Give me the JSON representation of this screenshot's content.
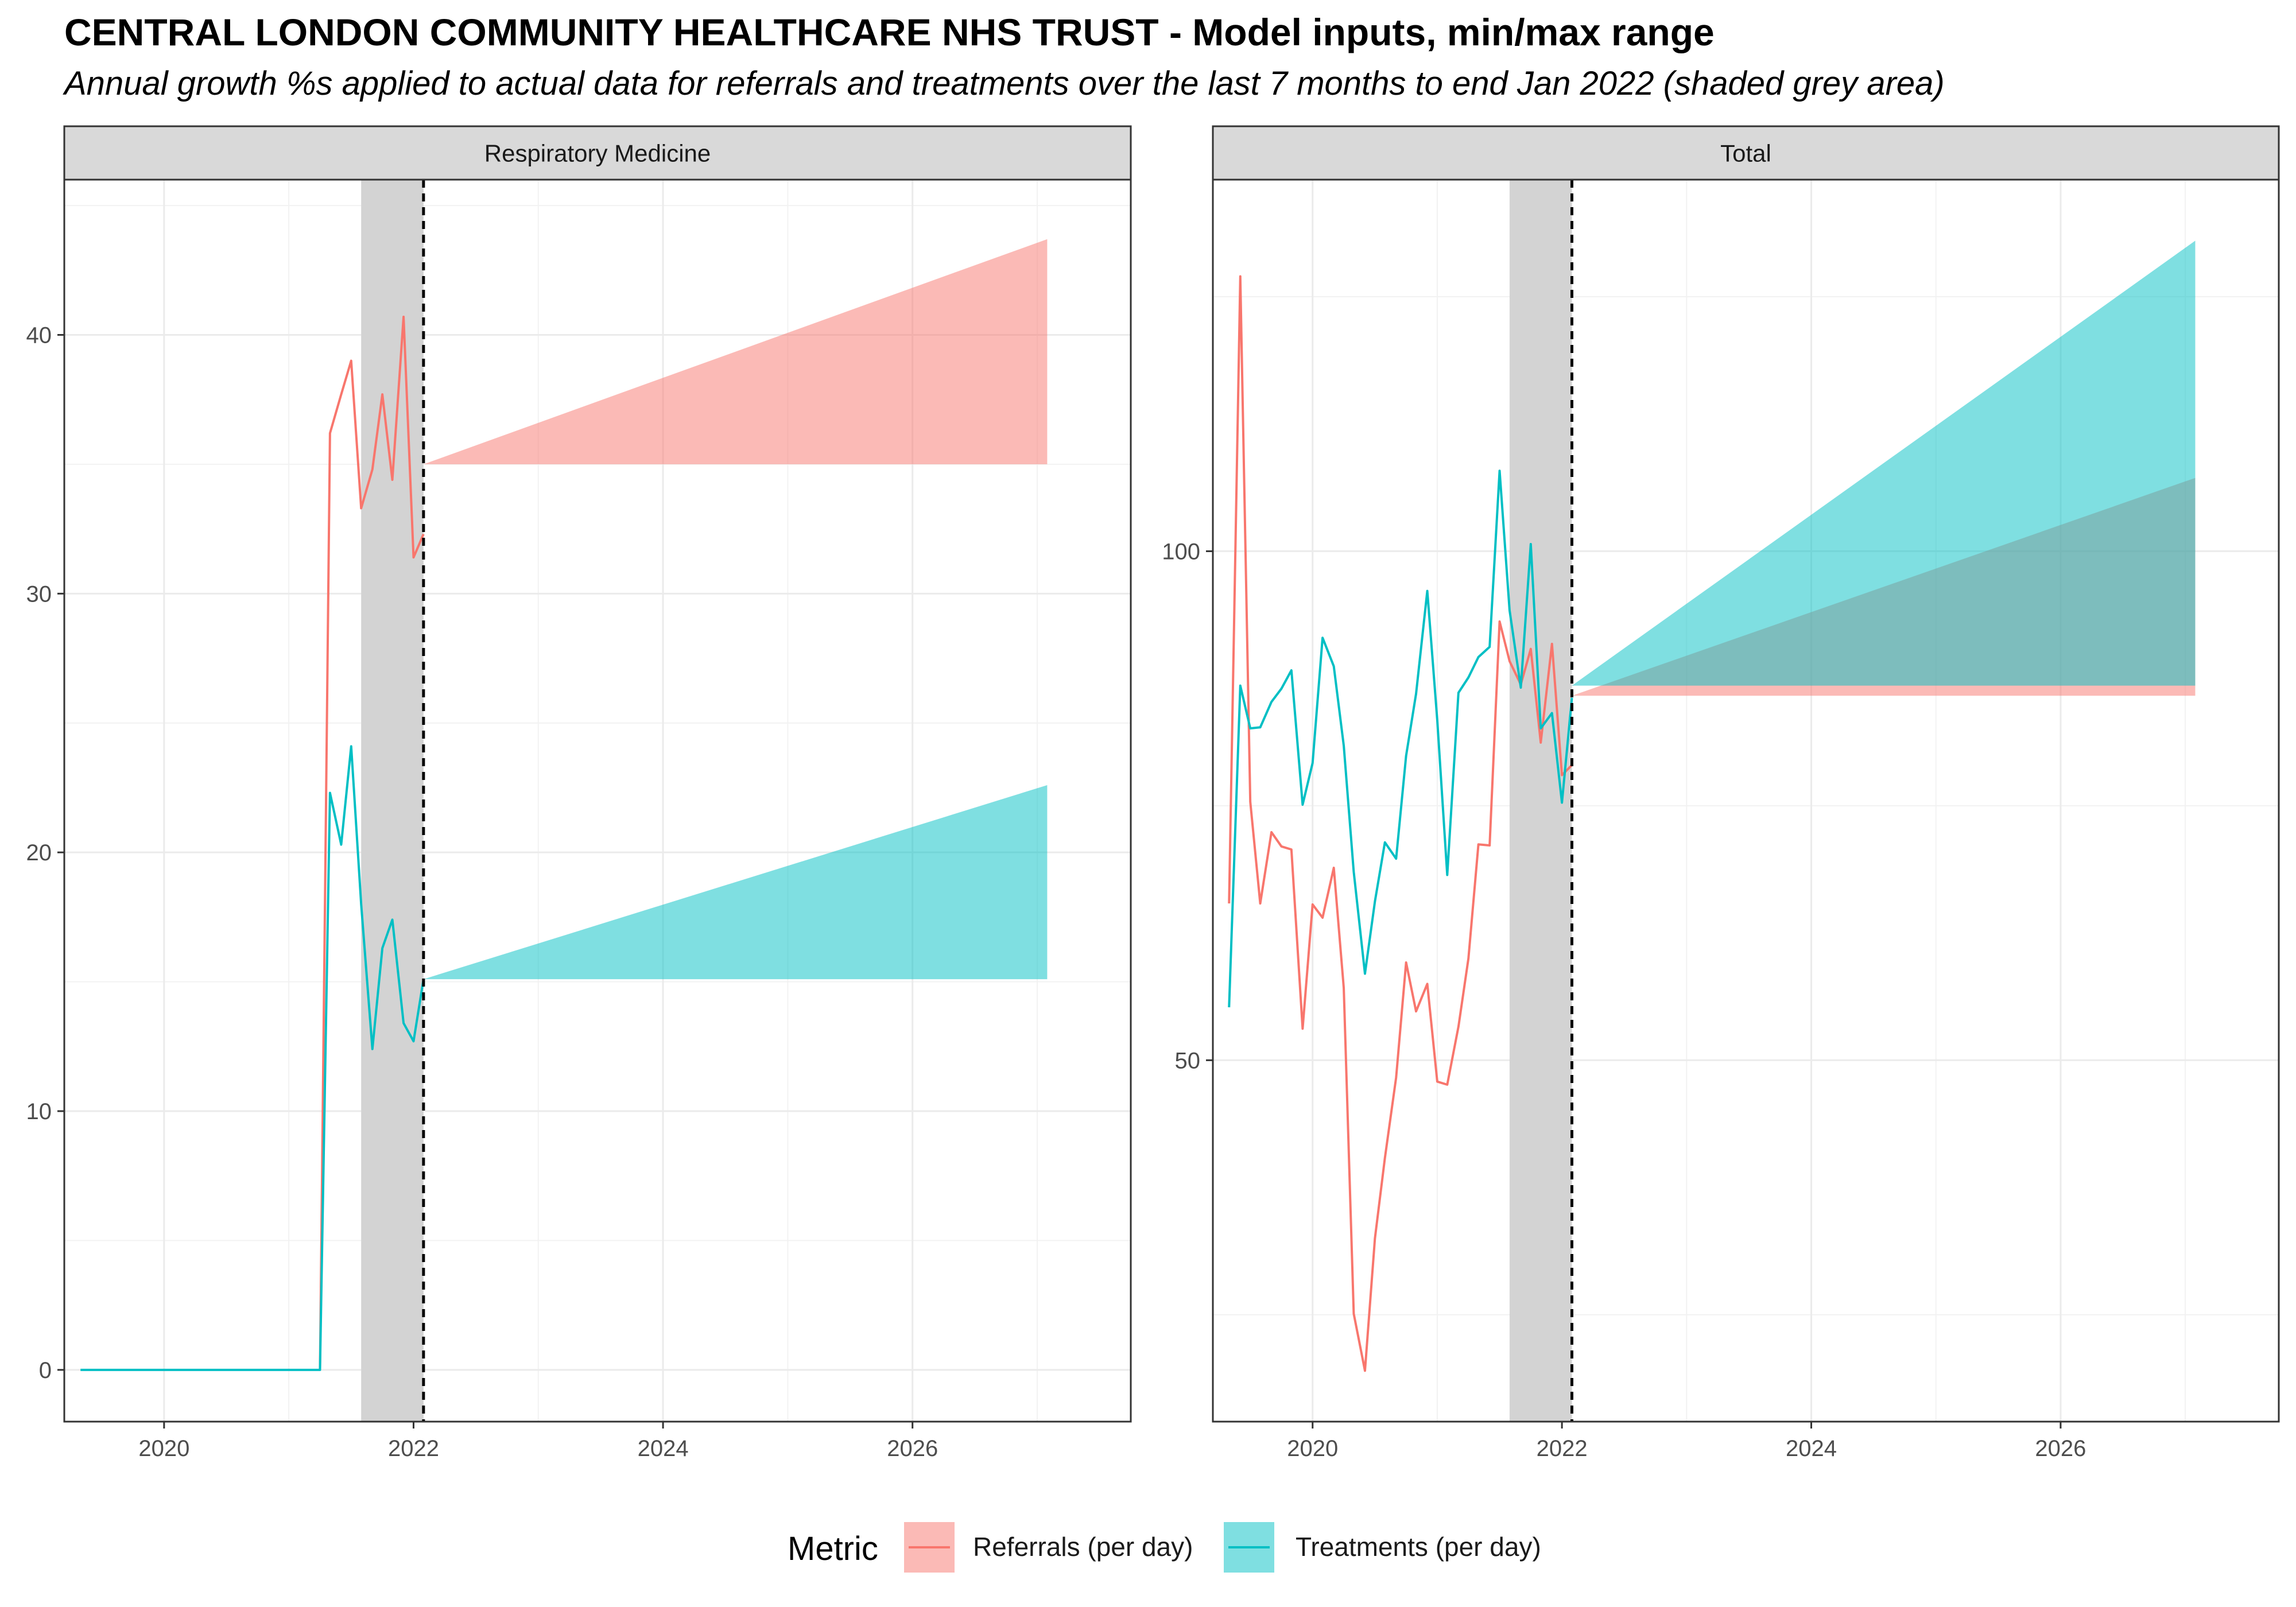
{
  "title": "CENTRAL LONDON COMMUNITY HEALTHCARE NHS TRUST - Model inputs, min/max range",
  "subtitle": "Annual growth %s applied to actual data for referrals and treatments over the last 7 months to end Jan 2022 (shaded grey area)",
  "colors": {
    "referrals": "#F8766D",
    "treatments": "#00BFC4",
    "shade": "#D3D3D3",
    "strip": "#D9D9D9"
  },
  "legend": {
    "title": "Metric",
    "items": [
      {
        "label": "Referrals (per day)",
        "color": "#F8766D"
      },
      {
        "label": "Treatments (per day)",
        "color": "#00BFC4"
      }
    ]
  },
  "chart_data": [
    {
      "type": "line",
      "panel": "Respiratory Medicine",
      "xlim": [
        2019.2,
        2027.75
      ],
      "ylim": [
        -2,
        46
      ],
      "x_ticks": [
        2020,
        2022,
        2024,
        2026
      ],
      "x_tick_labels": [
        "2020",
        "2022",
        "2024",
        "2026"
      ],
      "y_ticks": [
        0,
        10,
        20,
        30,
        40
      ],
      "y_tick_labels": [
        "0",
        "10",
        "20",
        "30",
        "40"
      ],
      "shade_range": [
        2021.58,
        2022.08
      ],
      "forecast_start": 2022.08,
      "series": [
        {
          "name": "Referrals (per day)",
          "color": "#F8766D",
          "points": [
            [
              2021.25,
              0
            ],
            [
              2021.33,
              36.2
            ],
            [
              2021.42,
              37.7
            ],
            [
              2021.5,
              39.0
            ],
            [
              2021.58,
              33.3
            ],
            [
              2021.67,
              34.8
            ],
            [
              2021.75,
              37.7
            ],
            [
              2021.83,
              34.4
            ],
            [
              2021.92,
              40.7
            ],
            [
              2022.0,
              31.4
            ],
            [
              2022.08,
              32.3
            ]
          ],
          "band": {
            "x": [
              2022.08,
              2027.08
            ],
            "lower": [
              35.0,
              35.0
            ],
            "upper": [
              35.0,
              43.7
            ]
          }
        },
        {
          "name": "Treatments (per day)",
          "color": "#00BFC4",
          "points": [
            [
              2019.33,
              0
            ],
            [
              2021.25,
              0
            ],
            [
              2021.33,
              22.3
            ],
            [
              2021.42,
              20.3
            ],
            [
              2021.5,
              24.1
            ],
            [
              2021.58,
              18.0
            ],
            [
              2021.67,
              12.4
            ],
            [
              2021.75,
              16.3
            ],
            [
              2021.83,
              17.4
            ],
            [
              2021.92,
              13.4
            ],
            [
              2022.0,
              12.7
            ],
            [
              2022.08,
              15.1
            ]
          ],
          "band": {
            "x": [
              2022.08,
              2027.08
            ],
            "lower": [
              15.1,
              15.1
            ],
            "upper": [
              15.1,
              22.6
            ]
          }
        }
      ]
    },
    {
      "type": "line",
      "panel": "Total",
      "xlim": [
        2019.2,
        2027.75
      ],
      "ylim": [
        14.5,
        136.5
      ],
      "x_ticks": [
        2020,
        2022,
        2024,
        2026
      ],
      "x_tick_labels": [
        "2020",
        "2022",
        "2024",
        "2026"
      ],
      "y_ticks": [
        50,
        100
      ],
      "y_tick_labels": [
        "50",
        "100"
      ],
      "shade_range": [
        2021.58,
        2022.08
      ],
      "forecast_start": 2022.08,
      "series": [
        {
          "name": "Referrals (per day)",
          "color": "#F8766D",
          "points": [
            [
              2019.33,
              65.4
            ],
            [
              2019.42,
              127.0
            ],
            [
              2019.5,
              75.4
            ],
            [
              2019.58,
              65.4
            ],
            [
              2019.67,
              72.4
            ],
            [
              2019.75,
              71.0
            ],
            [
              2019.83,
              70.7
            ],
            [
              2019.92,
              53.1
            ],
            [
              2020.0,
              65.3
            ],
            [
              2020.08,
              64.0
            ],
            [
              2020.17,
              68.9
            ],
            [
              2020.25,
              57.1
            ],
            [
              2020.33,
              25.1
            ],
            [
              2020.42,
              19.5
            ],
            [
              2020.5,
              32.5
            ],
            [
              2020.58,
              40.4
            ],
            [
              2020.67,
              48.3
            ],
            [
              2020.75,
              59.6
            ],
            [
              2020.83,
              54.8
            ],
            [
              2020.92,
              57.5
            ],
            [
              2021.0,
              47.9
            ],
            [
              2021.08,
              47.6
            ],
            [
              2021.17,
              53.3
            ],
            [
              2021.25,
              60.0
            ],
            [
              2021.33,
              71.2
            ],
            [
              2021.42,
              71.1
            ],
            [
              2021.5,
              93.1
            ],
            [
              2021.58,
              89.2
            ],
            [
              2021.67,
              86.9
            ],
            [
              2021.75,
              90.4
            ],
            [
              2021.83,
              81.2
            ],
            [
              2021.92,
              90.9
            ],
            [
              2022.0,
              78.0
            ],
            [
              2022.08,
              79.0
            ]
          ],
          "band": {
            "x": [
              2022.08,
              2027.08
            ],
            "lower": [
              85.8,
              85.8
            ],
            "upper": [
              85.8,
              107.2
            ]
          }
        },
        {
          "name": "Treatments (per day)",
          "color": "#00BFC4",
          "points": [
            [
              2019.33,
              55.2
            ],
            [
              2019.42,
              86.8
            ],
            [
              2019.5,
              82.6
            ],
            [
              2019.58,
              82.7
            ],
            [
              2019.67,
              85.2
            ],
            [
              2019.75,
              86.5
            ],
            [
              2019.83,
              88.3
            ],
            [
              2019.92,
              75.1
            ],
            [
              2020.0,
              79.2
            ],
            [
              2020.08,
              91.5
            ],
            [
              2020.17,
              88.7
            ],
            [
              2020.25,
              80.9
            ],
            [
              2020.33,
              68.5
            ],
            [
              2020.42,
              58.5
            ],
            [
              2020.5,
              65.6
            ],
            [
              2020.58,
              71.4
            ],
            [
              2020.67,
              69.8
            ],
            [
              2020.75,
              79.9
            ],
            [
              2020.83,
              86.0
            ],
            [
              2020.92,
              96.1
            ],
            [
              2021.0,
              83.4
            ],
            [
              2021.08,
              68.2
            ],
            [
              2021.17,
              86.1
            ],
            [
              2021.25,
              87.6
            ],
            [
              2021.33,
              89.6
            ],
            [
              2021.42,
              90.6
            ],
            [
              2021.5,
              107.9
            ],
            [
              2021.58,
              94.2
            ],
            [
              2021.67,
              86.6
            ],
            [
              2021.75,
              100.7
            ],
            [
              2021.83,
              82.6
            ],
            [
              2021.92,
              84.1
            ],
            [
              2022.0,
              75.3
            ],
            [
              2022.08,
              85.6
            ]
          ],
          "band": {
            "x": [
              2022.08,
              2027.08
            ],
            "lower": [
              86.8,
              86.8
            ],
            "upper": [
              86.8,
              130.5
            ]
          }
        }
      ]
    }
  ]
}
